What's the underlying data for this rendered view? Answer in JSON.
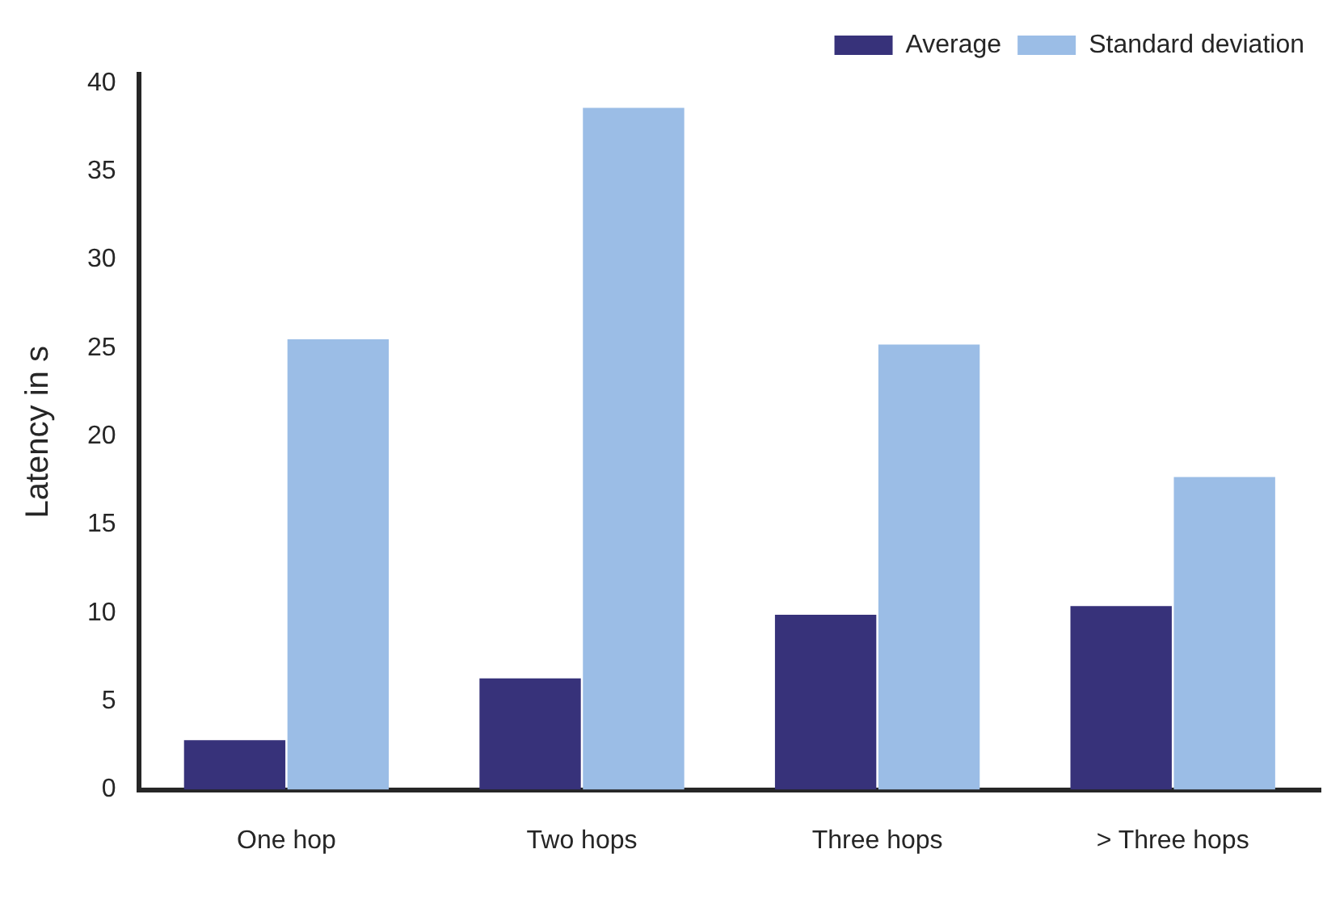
{
  "chart_data": {
    "type": "bar",
    "ylabel": "Latency in s",
    "categories": [
      "One hop",
      "Two hops",
      "Three hops",
      "> Three hops"
    ],
    "series": [
      {
        "name": "Average",
        "color": "#37327a",
        "values": [
          2.8,
          6.3,
          9.9,
          10.4
        ]
      },
      {
        "name": "Standard deviation",
        "color": "#9bbde6",
        "values": [
          25.5,
          38.6,
          25.2,
          17.7
        ]
      }
    ],
    "ylim": [
      0,
      40.5
    ],
    "yticks": [
      0,
      5,
      10,
      15,
      20,
      25,
      30,
      35,
      40
    ],
    "grid": false,
    "legend": "top right"
  }
}
